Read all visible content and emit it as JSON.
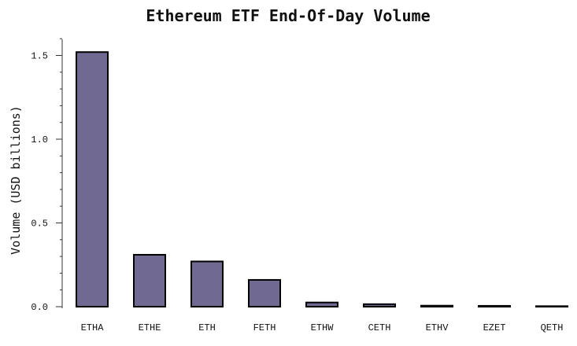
{
  "chart_data": {
    "type": "bar",
    "title": "Ethereum ETF End-Of-Day Volume",
    "xlabel": "",
    "ylabel": "Volume (USD billions)",
    "categories": [
      "ETHA",
      "ETHE",
      "ETH",
      "FETH",
      "ETHW",
      "CETH",
      "ETHV",
      "EZET",
      "QETH"
    ],
    "values": [
      1.52,
      0.31,
      0.27,
      0.16,
      0.025,
      0.015,
      0.006,
      0.005,
      0.003
    ],
    "ylim": [
      0,
      1.6
    ],
    "yticks": [
      0.0,
      0.5,
      1.0,
      1.5
    ],
    "ytick_labels": [
      "0.0",
      "0.5",
      "1.0",
      "1.5"
    ],
    "minor_ytick_step": 0.1,
    "grid": false,
    "legend": "none",
    "bar_color": "#706a93",
    "bar_edge_color": "#000000"
  }
}
